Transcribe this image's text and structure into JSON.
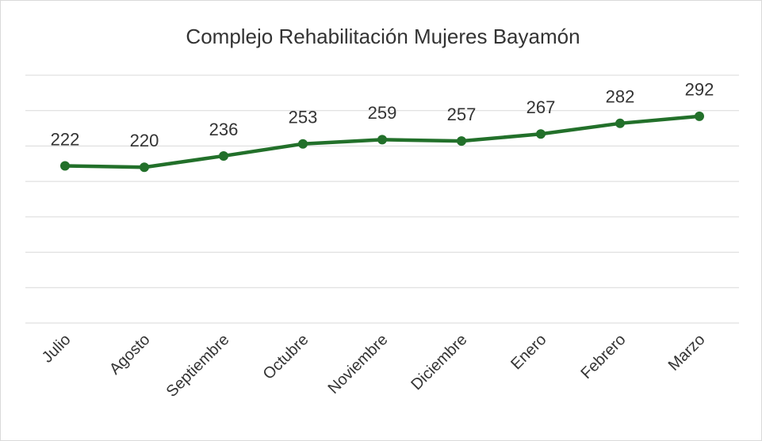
{
  "chart_data": {
    "type": "line",
    "title": "Complejo Rehabilitación Mujeres Bayamón",
    "categories": [
      "Julio",
      "Agosto",
      "Septiembre",
      "Octubre",
      "Noviembre",
      "Diciembre",
      "Enero",
      "Febrero",
      "Marzo"
    ],
    "values": [
      222,
      220,
      236,
      253,
      259,
      257,
      267,
      282,
      292
    ],
    "color": "#22702a",
    "ylim": [
      0,
      350
    ],
    "yticks": [
      0,
      50,
      100,
      150,
      200,
      250,
      300,
      350
    ],
    "grid": true
  }
}
